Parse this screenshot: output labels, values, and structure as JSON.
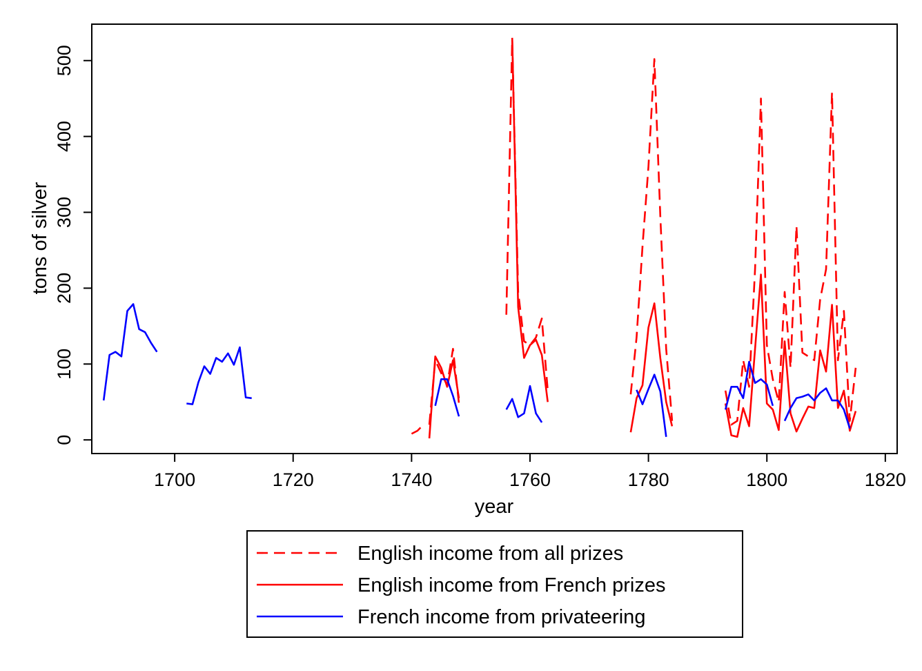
{
  "chart_data": {
    "type": "line",
    "title": "",
    "xlabel": "year",
    "ylabel": "tons of silver",
    "xlim": [
      1686,
      1822
    ],
    "ylim": [
      -18,
      548
    ],
    "xticks": [
      1700,
      1720,
      1740,
      1760,
      1780,
      1800,
      1820
    ],
    "yticks": [
      0,
      100,
      200,
      300,
      400,
      500
    ],
    "grid": false,
    "legend_position": "bottom",
    "series": [
      {
        "name": "English income from all prizes",
        "color": "#ff0000",
        "dash": "dashed",
        "segments": [
          [
            [
              1740,
              8
            ],
            [
              1741,
              12
            ],
            [
              1742,
              20
            ]
          ],
          [
            [
              1743,
              20
            ],
            [
              1744,
              105
            ],
            [
              1745,
              88
            ],
            [
              1746,
              72
            ],
            [
              1747,
              120
            ],
            [
              1748,
              48
            ]
          ],
          [
            [
              1756,
              165
            ],
            [
              1757,
              528
            ],
            [
              1758,
              195
            ],
            [
              1759,
              130
            ],
            [
              1760,
              125
            ],
            [
              1761,
              135
            ],
            [
              1762,
              160
            ],
            [
              1763,
              65
            ]
          ],
          [
            [
              1777,
              60
            ],
            [
              1778,
              135
            ],
            [
              1779,
              255
            ],
            [
              1780,
              360
            ],
            [
              1781,
              502
            ],
            [
              1782,
              295
            ],
            [
              1783,
              120
            ],
            [
              1784,
              25
            ]
          ],
          [
            [
              1793,
              65
            ],
            [
              1794,
              20
            ],
            [
              1795,
              25
            ],
            [
              1796,
              105
            ],
            [
              1797,
              70
            ],
            [
              1798,
              225
            ],
            [
              1799,
              450
            ],
            [
              1800,
              125
            ],
            [
              1801,
              80
            ],
            [
              1802,
              50
            ],
            [
              1803,
              195
            ],
            [
              1804,
              95
            ],
            [
              1805,
              282
            ],
            [
              1806,
              115
            ],
            [
              1807,
              110
            ],
            [
              1808,
              105
            ],
            [
              1809,
              185
            ],
            [
              1810,
              225
            ],
            [
              1811,
              458
            ],
            [
              1812,
              105
            ],
            [
              1813,
              170
            ],
            [
              1814,
              25
            ],
            [
              1815,
              95
            ]
          ]
        ]
      },
      {
        "name": "English income from French prizes",
        "color": "#ff0000",
        "dash": "solid",
        "segments": [
          [
            [
              1743,
              2
            ],
            [
              1744,
              110
            ],
            [
              1745,
              95
            ],
            [
              1746,
              70
            ],
            [
              1747,
              105
            ],
            [
              1748,
              55
            ]
          ],
          [
            [
              1757,
              530
            ],
            [
              1758,
              175
            ],
            [
              1759,
              108
            ],
            [
              1760,
              125
            ],
            [
              1761,
              132
            ],
            [
              1762,
              112
            ],
            [
              1763,
              50
            ]
          ],
          [
            [
              1777,
              10
            ],
            [
              1778,
              55
            ],
            [
              1779,
              72
            ],
            [
              1780,
              148
            ],
            [
              1781,
              180
            ],
            [
              1782,
              108
            ],
            [
              1783,
              50
            ],
            [
              1784,
              18
            ]
          ],
          [
            [
              1793,
              48
            ],
            [
              1794,
              6
            ],
            [
              1795,
              4
            ],
            [
              1796,
              42
            ],
            [
              1797,
              18
            ],
            [
              1798,
              120
            ],
            [
              1799,
              218
            ],
            [
              1800,
              48
            ],
            [
              1801,
              40
            ],
            [
              1802,
              13
            ],
            [
              1803,
              130
            ],
            [
              1804,
              35
            ],
            [
              1805,
              11
            ],
            [
              1806,
              28
            ],
            [
              1807,
              44
            ],
            [
              1808,
              42
            ],
            [
              1809,
              118
            ],
            [
              1810,
              90
            ],
            [
              1811,
              178
            ],
            [
              1812,
              42
            ],
            [
              1813,
              65
            ],
            [
              1814,
              12
            ],
            [
              1815,
              38
            ]
          ]
        ]
      },
      {
        "name": "French income from privateering",
        "color": "#0000ff",
        "dash": "solid",
        "segments": [
          [
            [
              1688,
              52
            ],
            [
              1689,
              112
            ],
            [
              1690,
              116
            ],
            [
              1691,
              110
            ],
            [
              1692,
              170
            ],
            [
              1693,
              179
            ],
            [
              1694,
              146
            ],
            [
              1695,
              142
            ],
            [
              1696,
              128
            ],
            [
              1697,
              116
            ]
          ],
          [
            [
              1702,
              48
            ],
            [
              1703,
              47
            ],
            [
              1704,
              76
            ],
            [
              1705,
              97
            ],
            [
              1706,
              87
            ],
            [
              1707,
              108
            ],
            [
              1708,
              103
            ],
            [
              1709,
              114
            ],
            [
              1710,
              99
            ],
            [
              1711,
              122
            ],
            [
              1712,
              56
            ],
            [
              1713,
              55
            ]
          ],
          [
            [
              1744,
              45
            ],
            [
              1745,
              80
            ],
            [
              1746,
              80
            ],
            [
              1747,
              58
            ],
            [
              1748,
              31
            ]
          ],
          [
            [
              1756,
              40
            ],
            [
              1757,
              54
            ],
            [
              1758,
              30
            ],
            [
              1759,
              35
            ],
            [
              1760,
              71
            ],
            [
              1761,
              35
            ],
            [
              1762,
              23
            ]
          ],
          [
            [
              1778,
              66
            ],
            [
              1779,
              47
            ],
            [
              1780,
              67
            ],
            [
              1781,
              86
            ],
            [
              1782,
              64
            ],
            [
              1783,
              4
            ]
          ],
          [
            [
              1793,
              40
            ],
            [
              1794,
              70
            ],
            [
              1795,
              70
            ],
            [
              1796,
              55
            ],
            [
              1797,
              103
            ],
            [
              1798,
              75
            ],
            [
              1799,
              80
            ],
            [
              1800,
              73
            ],
            [
              1801,
              45
            ]
          ],
          [
            [
              1803,
              25
            ],
            [
              1804,
              42
            ],
            [
              1805,
              55
            ],
            [
              1806,
              57
            ],
            [
              1807,
              60
            ],
            [
              1808,
              52
            ],
            [
              1809,
              62
            ],
            [
              1810,
              68
            ],
            [
              1811,
              52
            ],
            [
              1812,
              52
            ],
            [
              1813,
              40
            ],
            [
              1814,
              15
            ]
          ]
        ]
      }
    ]
  }
}
